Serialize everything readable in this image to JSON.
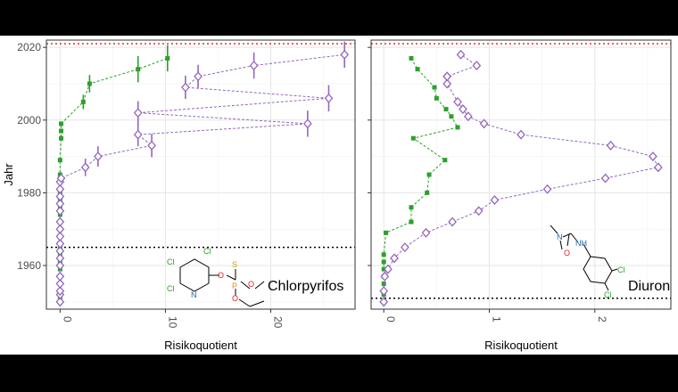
{
  "chart_data": [
    {
      "type": "scatter",
      "title": "",
      "xlabel": "Risikoquotient",
      "ylabel": "Jahr",
      "xlim": [
        -1.3,
        28
      ],
      "ylim": [
        1948,
        2022
      ],
      "x_ticks": [
        0,
        10,
        20
      ],
      "x_tick_labels": [
        "0",
        "10",
        "20"
      ],
      "y_ticks": [
        1960,
        1980,
        2000,
        2020
      ],
      "y_tick_labels": [
        "1960",
        "1980",
        "2000",
        "2020"
      ],
      "grid": true,
      "reference_lines": [
        {
          "axis": "y",
          "value": 2021,
          "color": "#e41a1c",
          "style": "dotted"
        },
        {
          "axis": "y",
          "value": 1965,
          "color": "#000000",
          "style": "dotted"
        }
      ],
      "series": [
        {
          "marker": "square",
          "color": "#2ca02c",
          "x": [
            0,
            0,
            0,
            0,
            0,
            0,
            0,
            0,
            0,
            0,
            0,
            0,
            0,
            0,
            0,
            0,
            0,
            0,
            0,
            0.1,
            0.1,
            0.1,
            2.2,
            2.8,
            7.4,
            10.2
          ],
          "y": [
            1950,
            1951,
            1953,
            1955,
            1957,
            1959,
            1961,
            1963,
            1965,
            1968,
            1970,
            1972,
            1974,
            1976,
            1978,
            1980,
            1983,
            1985,
            1989,
            1995,
            1997,
            1999,
            2005,
            2010,
            2014,
            2017
          ],
          "err": [
            0,
            0,
            0,
            0,
            0,
            0,
            0,
            0,
            0,
            0,
            0,
            0,
            0,
            0,
            0,
            0,
            0,
            0,
            0,
            0,
            0,
            0,
            0.5,
            0.6,
            0.9,
            0.9
          ]
        },
        {
          "marker": "diamond",
          "color": "#9467bd",
          "x": [
            0,
            0,
            0,
            0,
            0,
            0,
            0,
            0,
            0,
            0,
            0,
            0,
            0,
            0,
            0,
            0,
            0,
            0.1,
            2.4,
            3.6,
            8.7,
            7.4,
            23.5,
            7.4,
            25.5,
            11.9,
            13.1,
            18.4,
            27.0
          ],
          "y": [
            1950,
            1952,
            1953,
            1955,
            1957,
            1960,
            1962,
            1964,
            1966,
            1968,
            1970,
            1972,
            1975,
            1977,
            1979,
            1981,
            1983,
            1984,
            1987,
            1990,
            1993,
            1996,
            1999,
            2002,
            2006,
            2009,
            2012,
            2015,
            2018
          ],
          "err": [
            0,
            0,
            0,
            0,
            0,
            0,
            0,
            0,
            0,
            0,
            0,
            0,
            0,
            0,
            0,
            0,
            0,
            0,
            0.6,
            0.7,
            0.8,
            0.8,
            0.9,
            0.8,
            0.9,
            0.8,
            0.8,
            0.9,
            0.9
          ]
        }
      ],
      "structure_label": "Chlorpyrifos"
    },
    {
      "type": "scatter",
      "title": "",
      "xlabel": "Risikoquotient",
      "ylabel": "",
      "xlim": [
        -0.12,
        2.72
      ],
      "ylim": [
        1948,
        2022
      ],
      "x_ticks": [
        0,
        1,
        2
      ],
      "x_tick_labels": [
        "0",
        "1",
        "2"
      ],
      "y_ticks": [
        1960,
        1980,
        2000,
        2020
      ],
      "grid": true,
      "reference_lines": [
        {
          "axis": "y",
          "value": 2021,
          "color": "#e41a1c",
          "style": "dotted"
        },
        {
          "axis": "y",
          "value": 1951,
          "color": "#000000",
          "style": "dotted"
        }
      ],
      "series": [
        {
          "marker": "square",
          "color": "#2ca02c",
          "x": [
            0,
            0,
            0,
            0,
            0,
            0,
            0,
            0,
            0.02,
            0.26,
            0.26,
            0.41,
            0.43,
            0.58,
            0.28,
            0.7,
            0.64,
            0.59,
            0.5,
            0.48,
            0.32,
            0.26
          ],
          "y": [
            1950,
            1952,
            1953,
            1955,
            1957,
            1959,
            1961,
            1963,
            1969,
            1972,
            1976,
            1980,
            1985,
            1989,
            1995,
            1998,
            2001,
            2003,
            2006,
            2009,
            2014,
            2017
          ],
          "err": [
            0,
            0,
            0,
            0,
            0,
            0,
            0,
            0,
            0.03,
            0.03,
            0.03,
            0.03,
            0.03,
            0.03,
            0.03,
            0.03,
            0.03,
            0.03,
            0.03,
            0.03,
            0.03,
            0.03
          ]
        },
        {
          "marker": "diamond",
          "color": "#9467bd",
          "x": [
            0,
            0,
            0.01,
            0.04,
            0.1,
            0.2,
            0.4,
            0.65,
            0.9,
            1.05,
            1.55,
            2.1,
            2.6,
            2.55,
            2.15,
            1.3,
            0.95,
            0.8,
            0.75,
            0.7,
            0.6,
            0.6,
            0.6,
            0.88,
            0.73
          ],
          "y": [
            1950,
            1953,
            1957,
            1959,
            1962,
            1965,
            1969,
            1972,
            1975,
            1978,
            1981,
            1984,
            1987,
            1990,
            1993,
            1996,
            1999,
            2001,
            2003,
            2005,
            2010,
            2012,
            2012,
            2015,
            2018
          ],
          "err": [
            0,
            0,
            0,
            0.04,
            0.05,
            0.05,
            0.05,
            0.05,
            0.05,
            0.05,
            0.05,
            0.05,
            0.05,
            0.05,
            0.05,
            0.05,
            0.05,
            0.05,
            0.05,
            0.05,
            0.05,
            0.05,
            0.05,
            0.05,
            0.05
          ]
        }
      ],
      "structure_label": "Diuron"
    }
  ],
  "chlorpyrifos_atoms": {
    "cl": "Cl",
    "n": "N",
    "o": "O",
    "p": "P",
    "s": "S"
  },
  "diuron_atoms": {
    "cl": "Cl",
    "n": "N",
    "nh": "NH",
    "o": "O"
  }
}
